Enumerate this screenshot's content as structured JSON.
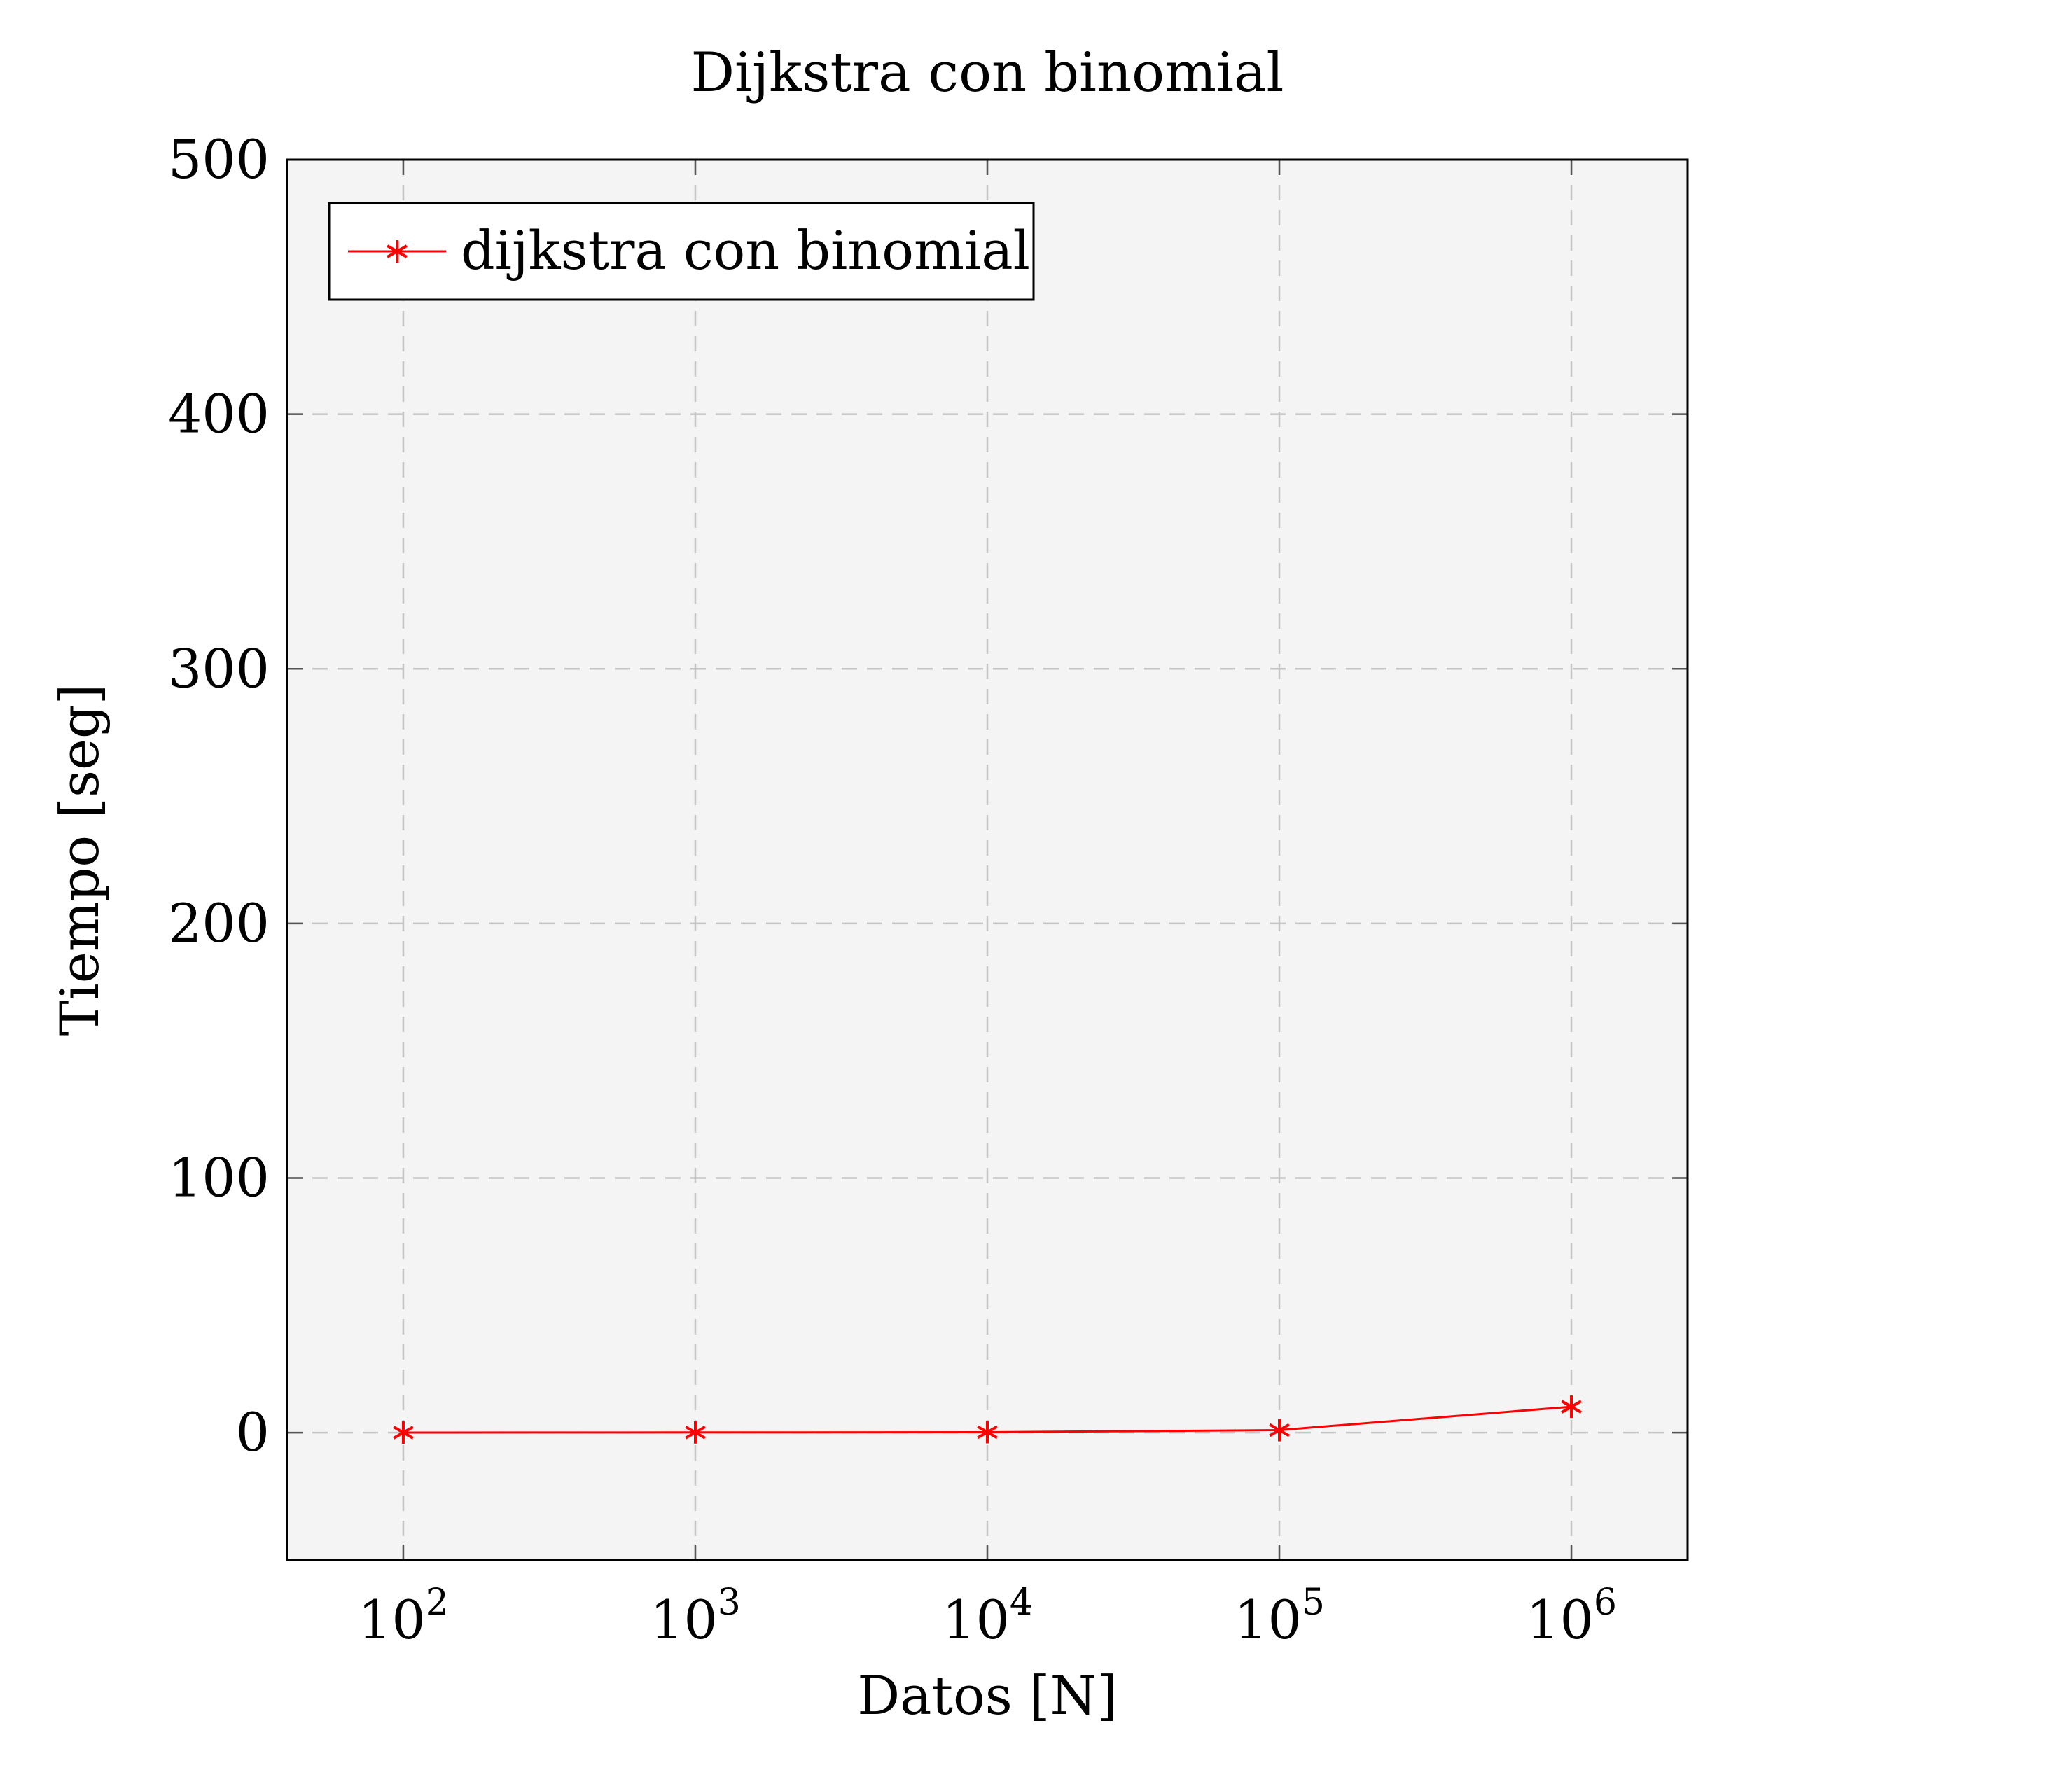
{
  "chart_data": {
    "type": "line",
    "title": "Dijkstra con binomial",
    "xlabel": "Datos [N]",
    "ylabel": "Tiempo [seg]",
    "x_scale": "log",
    "x": [
      100,
      1000,
      10000,
      100000,
      1000000
    ],
    "x_tick_labels": [
      {
        "base": "10",
        "exp": "2"
      },
      {
        "base": "10",
        "exp": "3"
      },
      {
        "base": "10",
        "exp": "4"
      },
      {
        "base": "10",
        "exp": "5"
      },
      {
        "base": "10",
        "exp": "6"
      }
    ],
    "y_ticks": [
      "0",
      "100",
      "200",
      "300",
      "400",
      "500"
    ],
    "ylim": [
      -50,
      500
    ],
    "xlim": [
      40,
      2500000
    ],
    "grid": true,
    "legend_position": "top-left",
    "series": [
      {
        "name": "dijkstra con binomial",
        "color": "#ff0000",
        "marker": "asterisk",
        "values": [
          0.05,
          0.1,
          0.2,
          1.0,
          10.2
        ]
      }
    ],
    "plot_background": "#f4f4f4"
  }
}
